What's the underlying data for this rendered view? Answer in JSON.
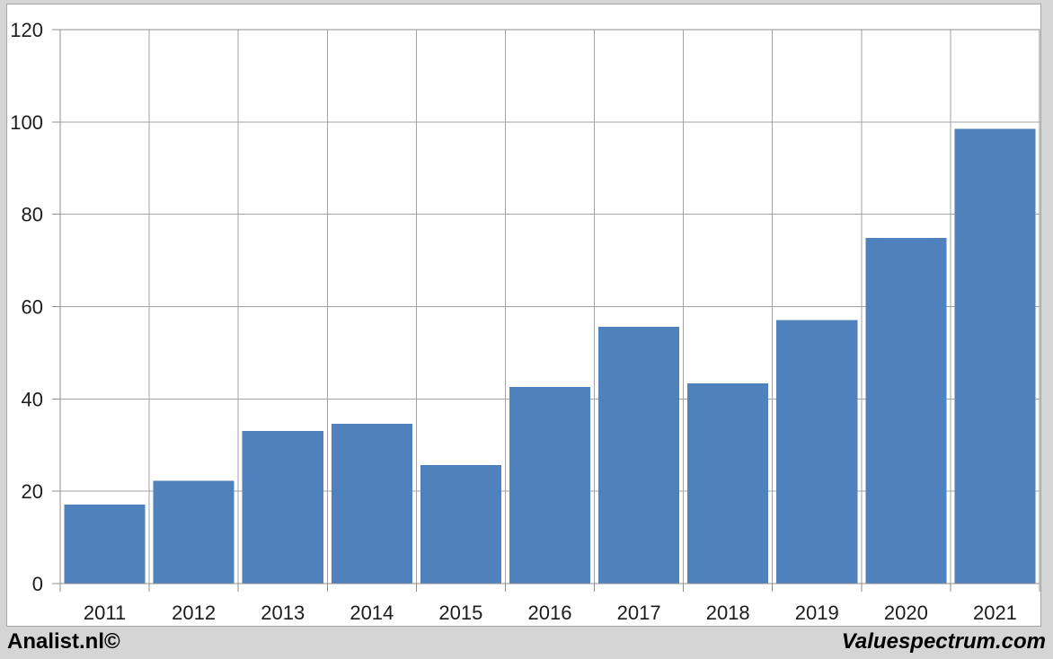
{
  "footer": {
    "left": "Analist.nl©",
    "right": "Valuespectrum.com"
  },
  "colors": {
    "background": "#d5d5d5",
    "panel": "#ffffff",
    "panel_border": "#a6a6a6",
    "plot_border": "#8f8f8f",
    "grid": "#a3a3a3",
    "tick": "#8f8f8f",
    "text": "#1c1c1c",
    "bar": "#4f81bd"
  },
  "chart_data": {
    "type": "bar",
    "title": "",
    "categories": [
      "2011",
      "2012",
      "2013",
      "2014",
      "2015",
      "2016",
      "2017",
      "2018",
      "2019",
      "2020",
      "2021"
    ],
    "values": [
      17.1,
      22.3,
      33.1,
      34.6,
      25.7,
      42.6,
      55.6,
      43.4,
      57.1,
      74.9,
      98.5
    ],
    "xlabel": "",
    "ylabel": "",
    "ylim": [
      0,
      120
    ],
    "yticks": [
      0,
      20,
      40,
      60,
      80,
      100,
      120
    ],
    "grid": true,
    "legend": "none",
    "bar_color": "#4f81bd"
  }
}
